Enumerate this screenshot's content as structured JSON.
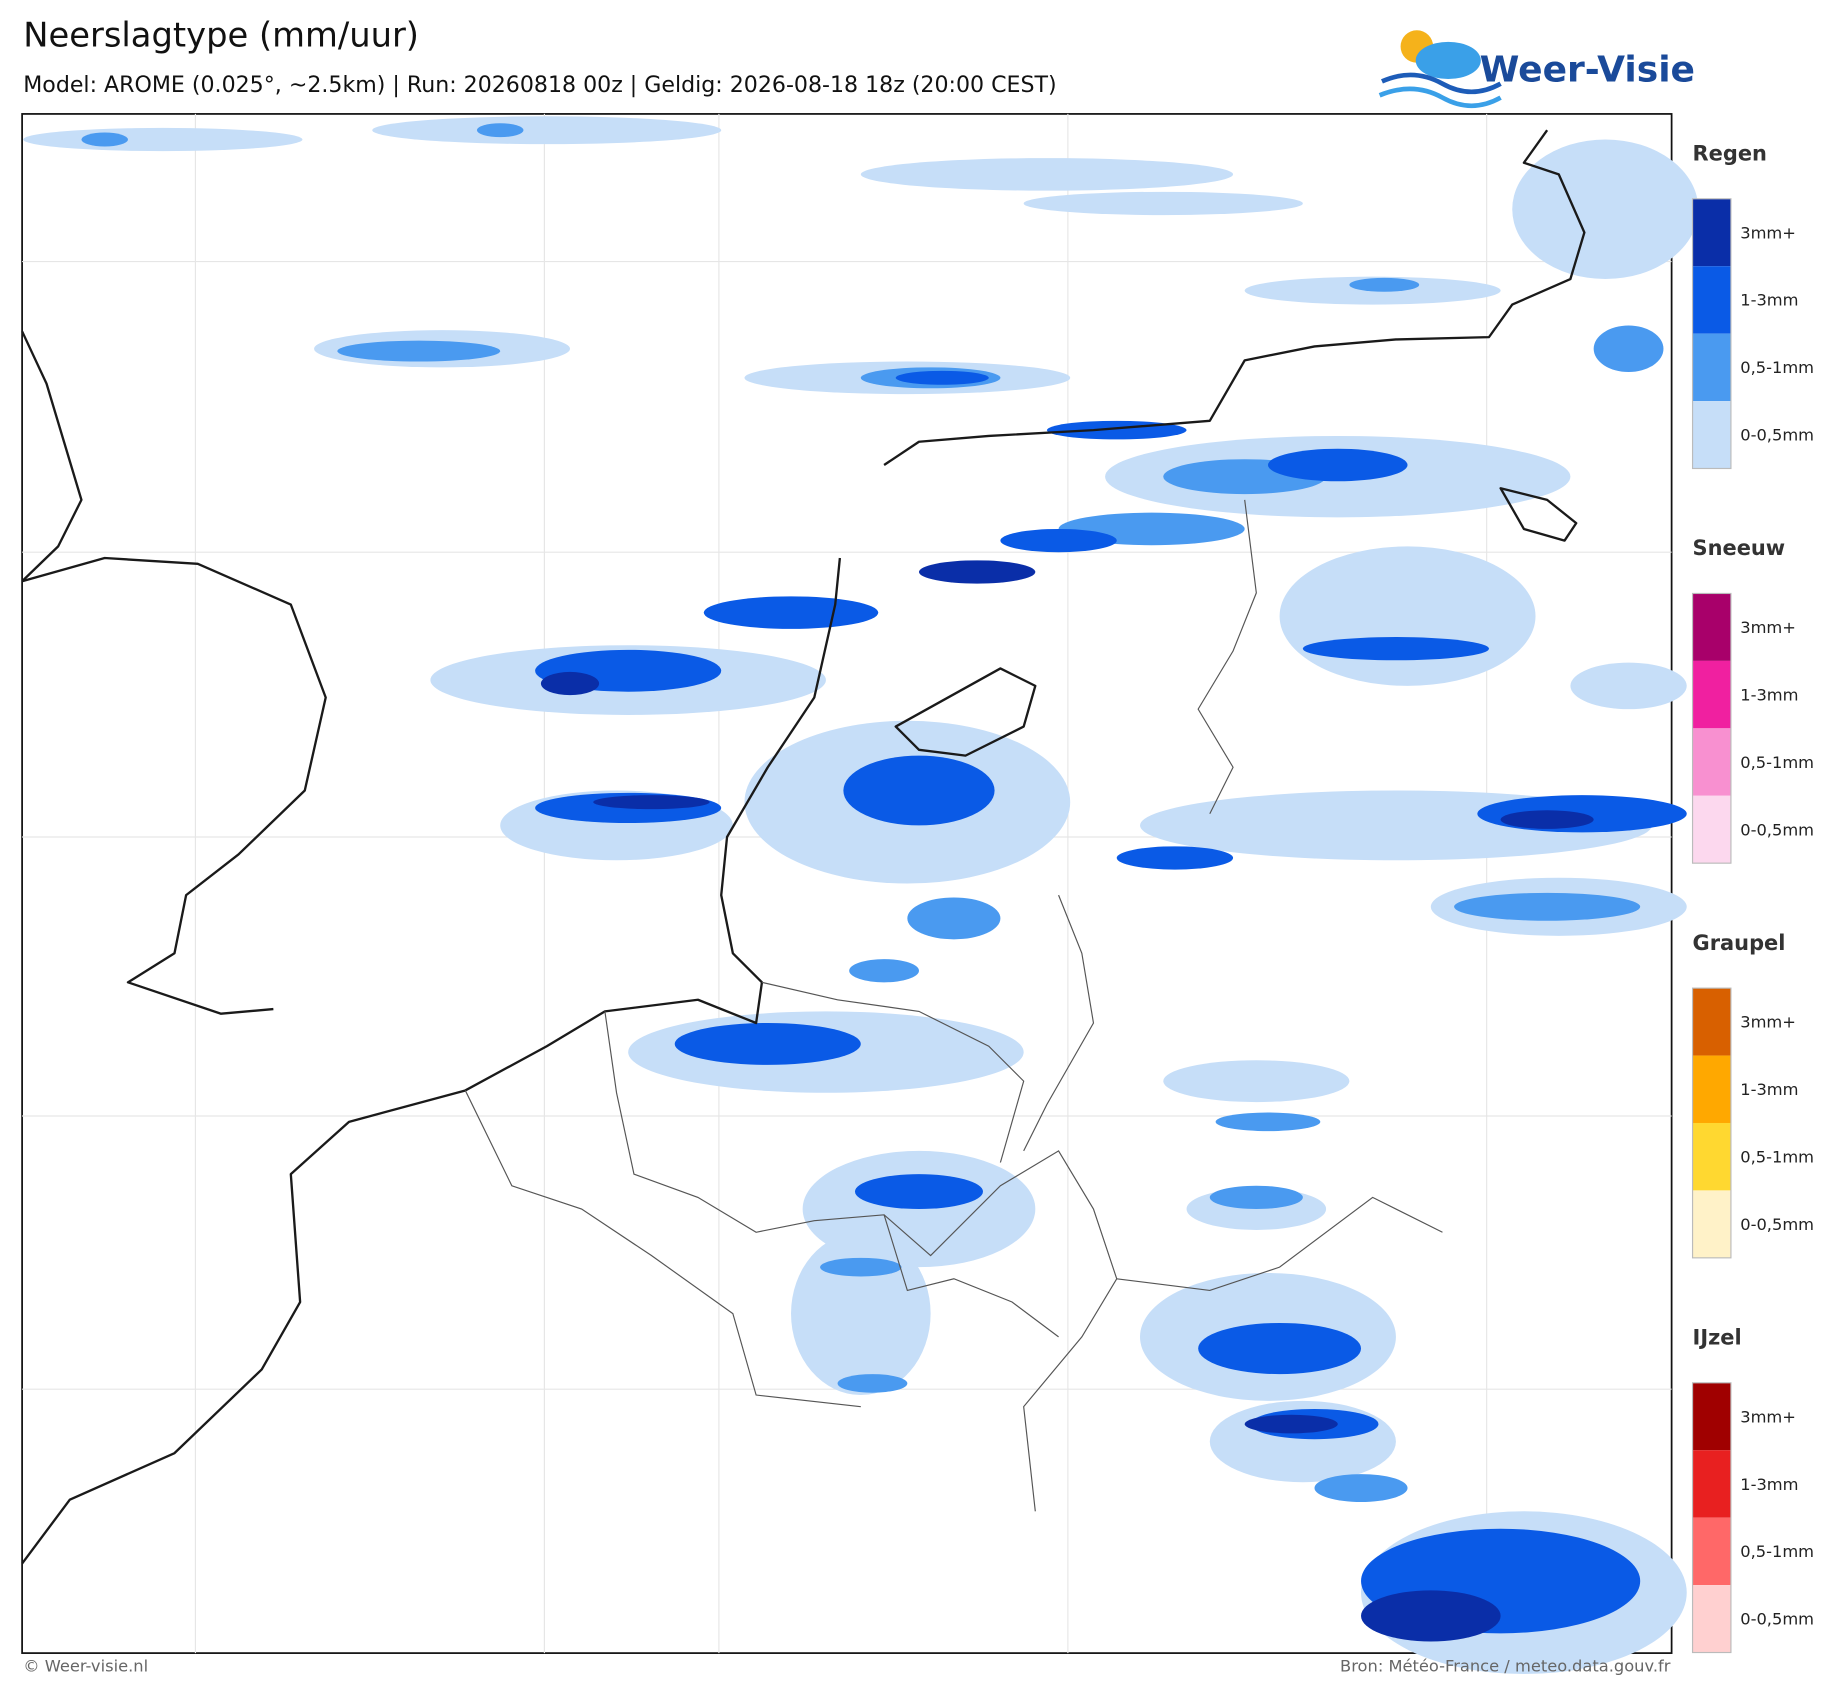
{
  "header": {
    "title": "Neerslagtype (mm/uur)",
    "subtitle": "Model: AROME (0.025°, ~2.5km)  |  Run: 20260818 00z  |  Geldig: 2026-08-18 18z (20:00 CEST)"
  },
  "logo": {
    "text": "Weer-Visie"
  },
  "legend": {
    "groups": [
      {
        "title": "Regen",
        "levels": [
          {
            "label": "3mm+",
            "color": "#0a2ea8"
          },
          {
            "label": "1-3mm",
            "color": "#0a5ae6"
          },
          {
            "label": "0,5-1mm",
            "color": "#4a9af0"
          },
          {
            "label": "0-0,5mm",
            "color": "#c6def8"
          }
        ]
      },
      {
        "title": "Sneeuw",
        "levels": [
          {
            "label": "3mm+",
            "color": "#a8006a"
          },
          {
            "label": "1-3mm",
            "color": "#f020a0"
          },
          {
            "label": "0,5-1mm",
            "color": "#f890d0"
          },
          {
            "label": "0-0,5mm",
            "color": "#fcd8ee"
          }
        ]
      },
      {
        "title": "Graupel",
        "levels": [
          {
            "label": "3mm+",
            "color": "#d86000"
          },
          {
            "label": "1-3mm",
            "color": "#ffa800"
          },
          {
            "label": "0,5-1mm",
            "color": "#ffd830"
          },
          {
            "label": "0-0,5mm",
            "color": "#fff2c8"
          }
        ]
      },
      {
        "title": "IJzel",
        "levels": [
          {
            "label": "3mm+",
            "color": "#a00000"
          },
          {
            "label": "1-3mm",
            "color": "#e82020"
          },
          {
            "label": "0,5-1mm",
            "color": "#ff6868"
          },
          {
            "label": "0-0,5mm",
            "color": "#ffd0d0"
          }
        ]
      }
    ]
  },
  "footer": {
    "left": "© Weer-visie.nl",
    "right": "Bron: Météo-France / meteo.data.gouv.fr"
  }
}
